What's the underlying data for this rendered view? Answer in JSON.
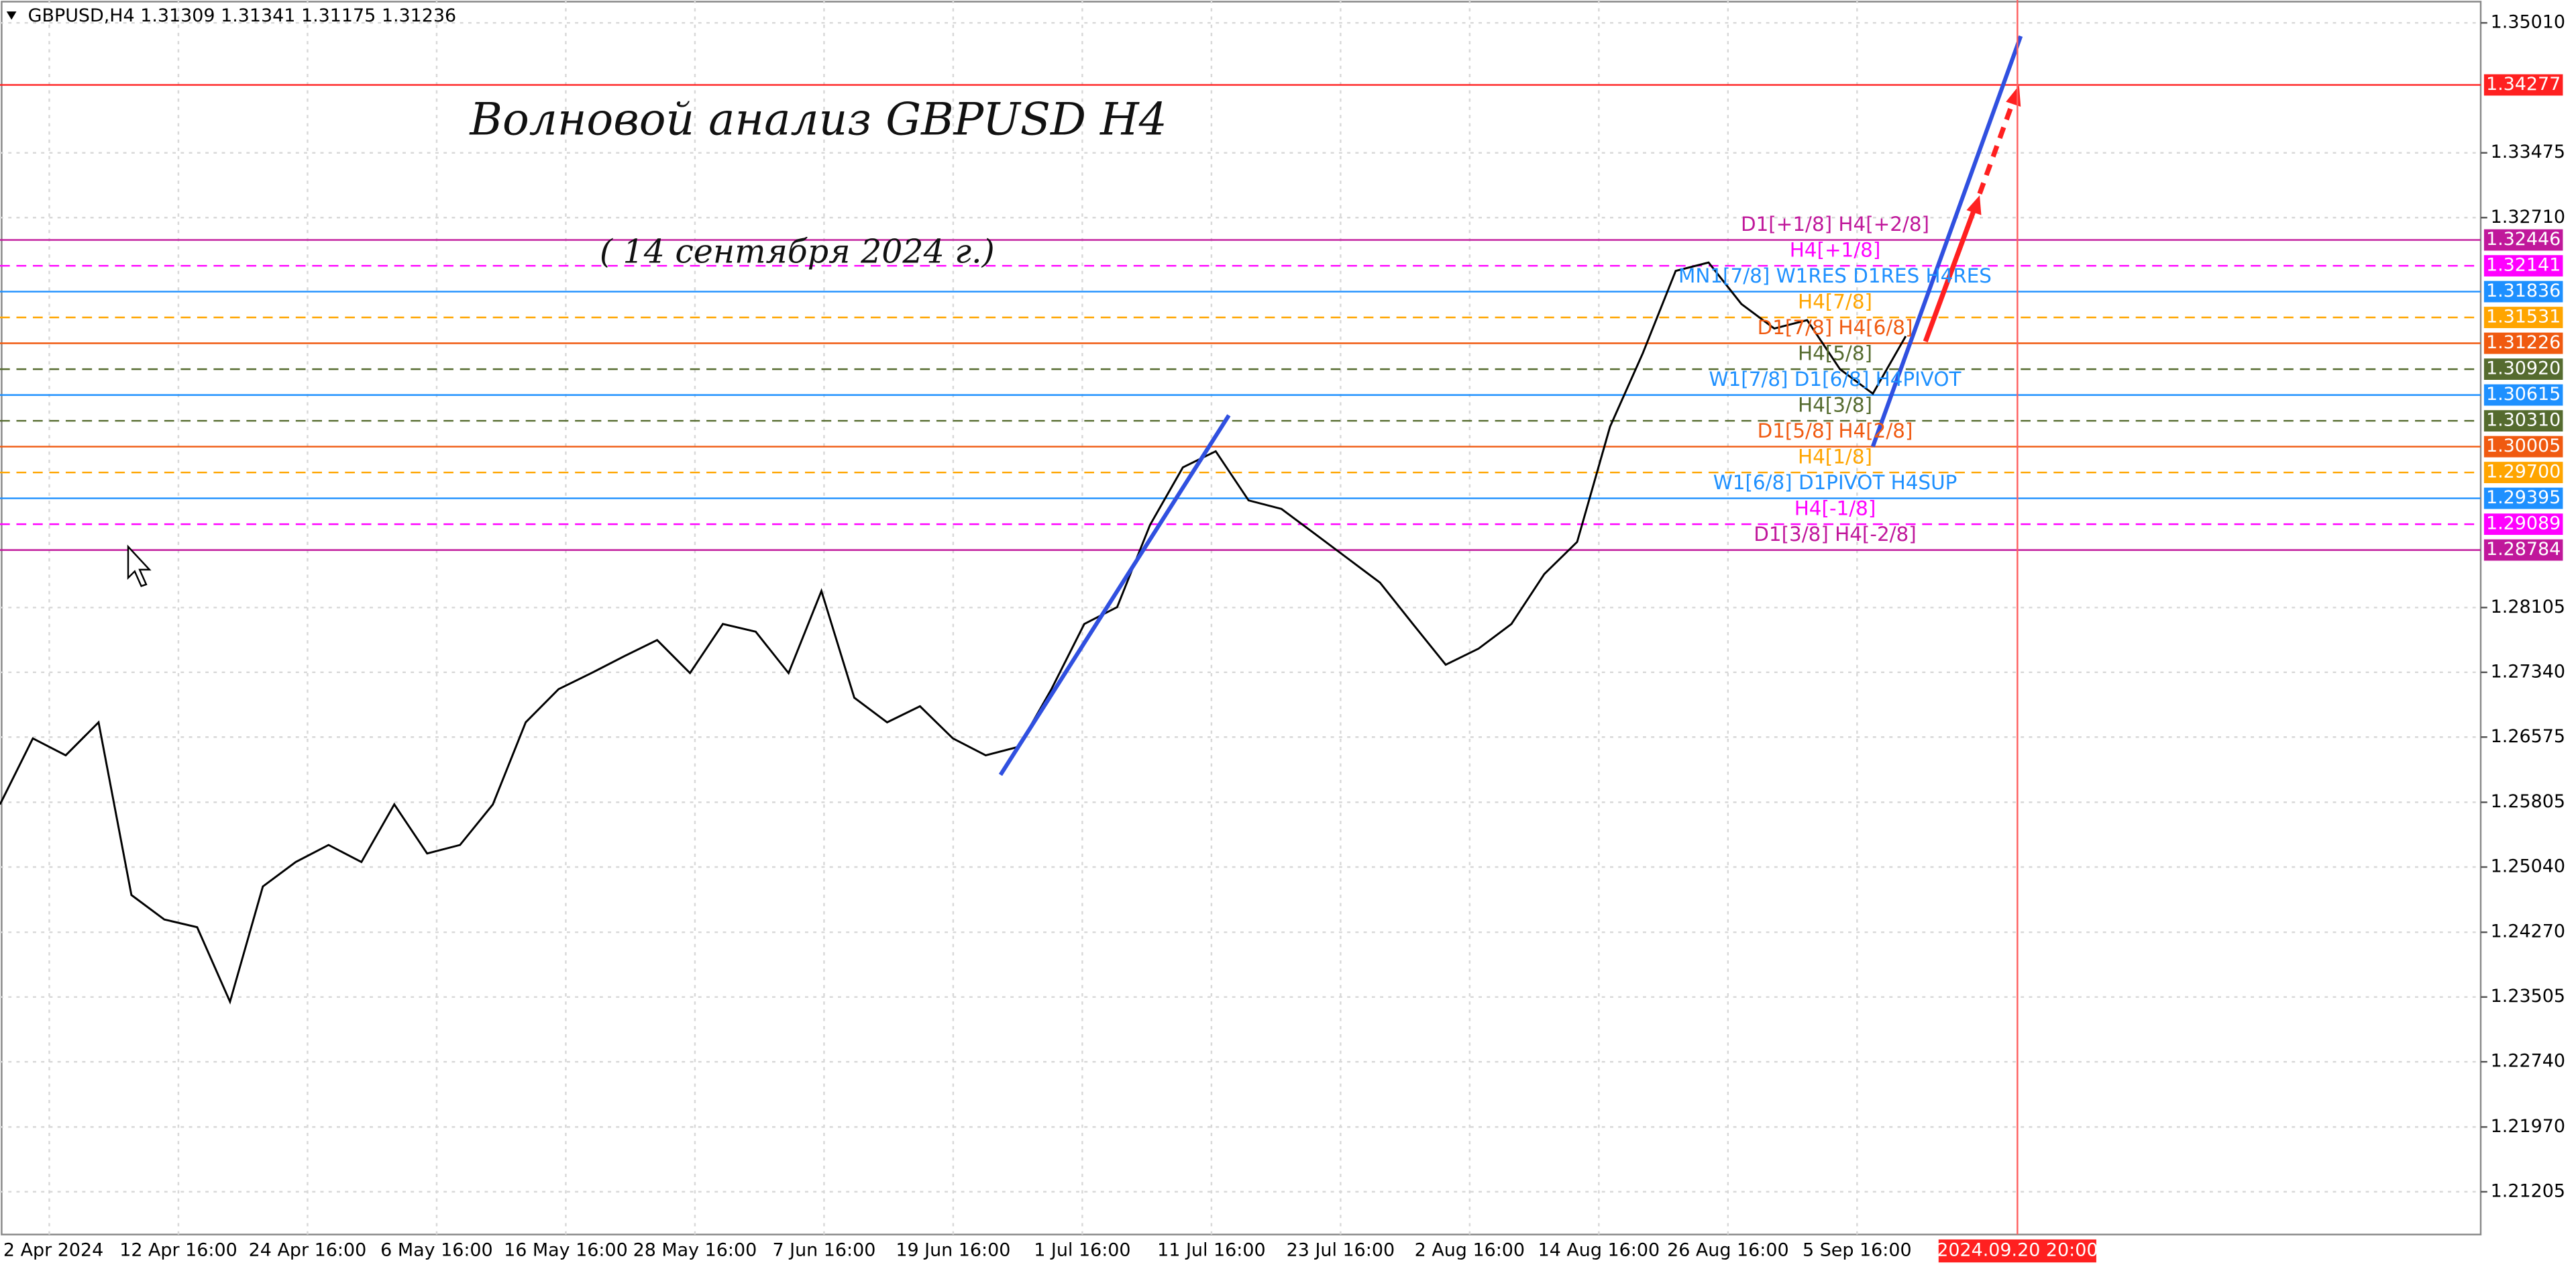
{
  "chart_data": {
    "type": "line",
    "header": "GBPUSD,H4  1.31309 1.31341 1.31175 1.31236",
    "title": "Волновой анализ GBPUSD H4",
    "subtitle": "( 14 сентября 2024 г.)",
    "color": "#000000",
    "values": [
      1.2578,
      1.2656,
      1.2636,
      1.2675,
      1.2471,
      1.2442,
      1.2433,
      1.2345,
      1.2481,
      1.251,
      1.253,
      1.251,
      1.2578,
      1.252,
      1.253,
      1.2578,
      1.2675,
      1.2714,
      1.2733,
      1.2753,
      1.2772,
      1.2733,
      1.2791,
      1.2782,
      1.2733,
      1.283,
      1.2704,
      1.2675,
      1.2694,
      1.2656,
      1.2636,
      1.2646,
      1.2714,
      1.2791,
      1.2811,
      1.2908,
      1.2976,
      1.2995,
      1.2937,
      1.2927,
      1.2898,
      1.2869,
      1.284,
      1.2791,
      1.2743,
      1.2762,
      1.2791,
      1.285,
      1.2888,
      1.3024,
      1.3111,
      1.3208,
      1.3218,
      1.3169,
      1.314,
      1.315,
      1.3092,
      1.3063,
      1.3131
    ],
    "xticks": [
      "2 Apr 2024",
      "12 Apr 16:00",
      "24 Apr 16:00",
      "6 May 16:00",
      "16 May 16:00",
      "28 May 16:00",
      "7 Jun 16:00",
      "19 Jun 16:00",
      "1 Jul 16:00",
      "11 Jul 16:00",
      "23 Jul 16:00",
      "2 Aug 16:00",
      "14 Aug 16:00",
      "26 Aug 16:00",
      "5 Sep 16:00"
    ],
    "marker_label": "2024.09.20 20:00",
    "ylim": [
      1.207,
      1.3528
    ],
    "yticks": [
      {
        "value": 1.3501,
        "label": "1.35010"
      },
      1.33475,
      {
        "value": 1.3271,
        "label": "1.32710"
      },
      1.28105,
      {
        "value": 1.2734,
        "label": "1.27340"
      },
      1.26575,
      1.25805,
      {
        "value": 1.2504,
        "label": "1.25040"
      },
      {
        "value": 1.2427,
        "label": "1.24270"
      },
      1.23505,
      {
        "value": 1.2274,
        "label": "1.22740"
      },
      {
        "value": 1.2197,
        "label": "1.21970"
      },
      1.21205
    ],
    "grid": true,
    "levels": {
      "values": [
        1.34277,
        1.32446,
        1.32141,
        1.31836,
        1.31531,
        1.31226,
        1.3092,
        1.30615,
        1.3031,
        1.30005,
        1.297,
        1.29395,
        1.29089,
        1.28784
      ],
      "value_labels": [
        "1.34277",
        "1.32446",
        "1.32141",
        "1.31836",
        "1.31531",
        "1.31226",
        "1.30920",
        "1.30615",
        "1.30310",
        "1.30005",
        "1.29700",
        "1.29395",
        "1.29089",
        "1.28784"
      ],
      "names": [
        null,
        "D1[+1/8] H4[+2/8]",
        "H4[+1/8]",
        "MN1[7/8] W1RES D1RES H4RES",
        "H4[7/8]",
        "D1[7/8] H4[6/8]",
        "H4[5/8]",
        "W1[7/8] D1[6/8] H4PIVOT",
        "H4[3/8]",
        "D1[5/8] H4[2/8]",
        "H4[1/8]",
        "W1[6/8] D1PIVOT H4SUP",
        "H4[-1/8]",
        "D1[3/8] H4[-2/8]"
      ],
      "colors": [
        "#ff2020",
        "#c0189b",
        "#ff00ff",
        "#1e90ff",
        "#ffa500",
        "#f05a10",
        "#556b2f",
        "#1e90ff",
        "#556b2f",
        "#f05a10",
        "#ffa500",
        "#1e90ff",
        "#ff00ff",
        "#c0189b"
      ],
      "dashed": [
        false,
        false,
        true,
        false,
        true,
        false,
        true,
        false,
        true,
        false,
        true,
        false,
        true,
        false
      ]
    }
  }
}
